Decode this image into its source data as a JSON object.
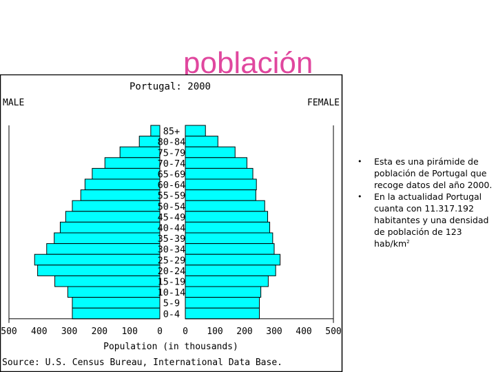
{
  "slide": {
    "title": "población",
    "bullets": [
      {
        "text": "Esta es una pirámide de población de Portugal que recoge datos del año 2000."
      },
      {
        "text": "En la actualidad Portugal cuanta con 11.317.192 habitantes y una densidad de población de 123 hab/km",
        "sup": "2"
      }
    ]
  },
  "colors": {
    "title": "#e0479e",
    "bars": "#00ffff",
    "outline": "#000000"
  },
  "chart_data": {
    "type": "bar",
    "orientation": "horizontal-pyramid",
    "title": "Portugal: 2000",
    "left_label": "MALE",
    "right_label": "FEMALE",
    "xlabel": "Population (in thousands)",
    "source": "Source: U.S. Census Bureau, International Data Base.",
    "xlim": [
      -500,
      500
    ],
    "x_ticks": [
      "500",
      "400",
      "300",
      "200",
      "100",
      "0",
      "0",
      "100",
      "200",
      "300",
      "400",
      "500"
    ],
    "categories": [
      "85+",
      "80-84",
      "75-79",
      "70-74",
      "65-69",
      "60-64",
      "55-59",
      "50-54",
      "45-49",
      "40-44",
      "35-39",
      "30-34",
      "25-29",
      "20-24",
      "15-19",
      "10-14",
      "5-9",
      "0-4"
    ],
    "series": [
      {
        "name": "MALE",
        "values": [
          30,
          68,
          132,
          182,
          224,
          248,
          262,
          290,
          312,
          330,
          350,
          375,
          415,
          405,
          348,
          305,
          290,
          290
        ]
      },
      {
        "name": "FEMALE",
        "values": [
          68,
          110,
          168,
          208,
          228,
          240,
          238,
          268,
          278,
          285,
          295,
          300,
          320,
          305,
          280,
          255,
          250,
          250
        ]
      }
    ]
  }
}
